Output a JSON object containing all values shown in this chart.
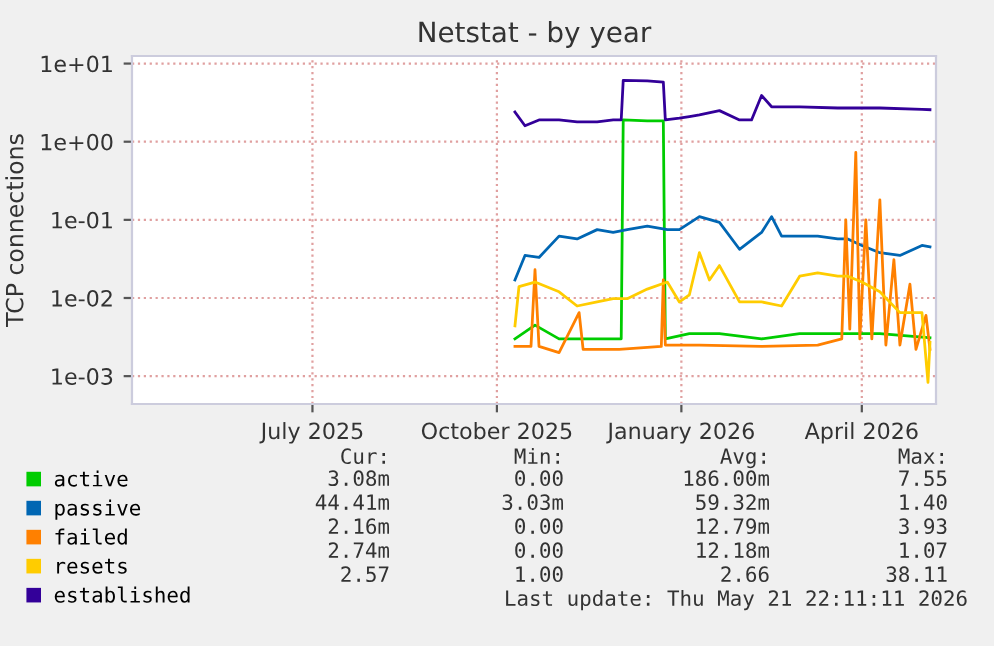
{
  "chart_data": {
    "type": "line",
    "title": "Netstat - by year",
    "ylabel": "TCP connections",
    "log": "y",
    "xlim": [
      "2025-04-02",
      "2026-05-08"
    ],
    "ylim": [
      0.00044,
      12.5
    ],
    "xticks": [
      {
        "value": "2025-07-01",
        "label": "July 2025"
      },
      {
        "value": "2025-10-01",
        "label": "October 2025"
      },
      {
        "value": "2026-01-01",
        "label": "January 2026"
      },
      {
        "value": "2026-04-01",
        "label": "April 2026"
      }
    ],
    "yticks": [
      {
        "value": 0.001,
        "label": "1e-03"
      },
      {
        "value": 0.01,
        "label": "1e-02"
      },
      {
        "value": 0.1,
        "label": "1e-01"
      },
      {
        "value": 1,
        "label": "1e+00"
      },
      {
        "value": 10,
        "label": "1e+01"
      }
    ],
    "grid": true,
    "legend": "bottom left",
    "line_style": "solid",
    "marker": "none",
    "series": [
      {
        "name": "active",
        "color": "#00cc00",
        "x": [
          "2025-10-10",
          "2025-10-20",
          "2025-11-01",
          "2025-11-15",
          "2025-12-02",
          "2025-12-03",
          "2025-12-15",
          "2025-12-23",
          "2025-12-24",
          "2026-01-05",
          "2026-01-20",
          "2026-02-10",
          "2026-03-01",
          "2026-03-20",
          "2026-04-10",
          "2026-05-05"
        ],
        "values": [
          0.003,
          0.0045,
          0.003,
          0.003,
          0.003,
          1.9,
          1.85,
          1.85,
          0.003,
          0.0035,
          0.0035,
          0.003,
          0.0035,
          0.0035,
          0.0035,
          0.0031
        ]
      },
      {
        "name": "passive",
        "color": "#0066b3",
        "x": [
          "2025-10-10",
          "2025-10-15",
          "2025-10-22",
          "2025-11-01",
          "2025-11-10",
          "2025-11-20",
          "2025-11-28",
          "2025-12-05",
          "2025-12-15",
          "2025-12-25",
          "2025-12-31",
          "2026-01-10",
          "2026-01-20",
          "2026-01-30",
          "2026-02-10",
          "2026-02-15",
          "2026-02-20",
          "2026-03-01",
          "2026-03-10",
          "2026-03-20",
          "2026-03-25",
          "2026-04-01",
          "2026-04-10",
          "2026-04-20",
          "2026-05-01",
          "2026-05-05"
        ],
        "values": [
          0.017,
          0.035,
          0.033,
          0.062,
          0.057,
          0.075,
          0.069,
          0.075,
          0.083,
          0.075,
          0.075,
          0.11,
          0.093,
          0.042,
          0.069,
          0.11,
          0.062,
          0.062,
          0.062,
          0.057,
          0.057,
          0.047,
          0.038,
          0.035,
          0.047,
          0.045
        ]
      },
      {
        "name": "failed",
        "color": "#ff8000",
        "x": [
          "2025-10-10",
          "2025-10-18",
          "2025-10-20",
          "2025-10-22",
          "2025-11-01",
          "2025-11-11",
          "2025-11-13",
          "2025-12-01",
          "2025-12-22",
          "2025-12-23",
          "2025-12-24",
          "2026-01-10",
          "2026-02-10",
          "2026-03-10",
          "2026-03-22",
          "2026-03-24",
          "2026-03-26",
          "2026-03-29",
          "2026-03-31",
          "2026-04-03",
          "2026-04-06",
          "2026-04-10",
          "2026-04-13",
          "2026-04-17",
          "2026-04-20",
          "2026-04-25",
          "2026-04-28",
          "2026-05-03",
          "2026-05-05"
        ],
        "values": [
          0.0024,
          0.0024,
          0.023,
          0.0024,
          0.002,
          0.0065,
          0.0022,
          0.0022,
          0.0024,
          0.017,
          0.0025,
          0.0025,
          0.0024,
          0.0025,
          0.003,
          0.1,
          0.004,
          0.73,
          0.003,
          0.1,
          0.003,
          0.18,
          0.0025,
          0.031,
          0.0025,
          0.015,
          0.0022,
          0.006,
          0.0022
        ]
      },
      {
        "name": "resets",
        "color": "#ffcc00",
        "x": [
          "2025-10-10",
          "2025-10-12",
          "2025-10-20",
          "2025-11-01",
          "2025-11-10",
          "2025-11-20",
          "2025-11-28",
          "2025-12-05",
          "2025-12-15",
          "2025-12-25",
          "2025-12-31",
          "2026-01-05",
          "2026-01-10",
          "2026-01-15",
          "2026-01-20",
          "2026-01-30",
          "2026-02-10",
          "2026-02-20",
          "2026-03-01",
          "2026-03-10",
          "2026-03-20",
          "2026-03-25",
          "2026-04-01",
          "2026-04-10",
          "2026-04-20",
          "2026-05-01",
          "2026-05-04",
          "2026-05-05"
        ],
        "values": [
          0.0044,
          0.014,
          0.016,
          0.012,
          0.0079,
          0.0089,
          0.0098,
          0.0098,
          0.013,
          0.016,
          0.0089,
          0.011,
          0.038,
          0.017,
          0.026,
          0.0089,
          0.0089,
          0.0079,
          0.019,
          0.021,
          0.019,
          0.019,
          0.016,
          0.012,
          0.0065,
          0.0065,
          0.00083,
          0.0027
        ]
      },
      {
        "name": "established",
        "color": "#330099",
        "x": [
          "2025-10-10",
          "2025-10-15",
          "2025-10-22",
          "2025-11-01",
          "2025-11-10",
          "2025-11-20",
          "2025-11-28",
          "2025-12-02",
          "2025-12-03",
          "2025-12-15",
          "2025-12-23",
          "2025-12-24",
          "2025-12-31",
          "2026-01-05",
          "2026-01-10",
          "2026-01-20",
          "2026-01-30",
          "2026-02-05",
          "2026-02-10",
          "2026-02-15",
          "2026-03-01",
          "2026-03-20",
          "2026-04-10",
          "2026-05-01",
          "2026-05-05"
        ],
        "values": [
          2.4,
          1.6,
          1.9,
          1.9,
          1.8,
          1.8,
          1.9,
          1.9,
          6.1,
          6.0,
          5.8,
          1.9,
          2.0,
          2.1,
          2.2,
          2.5,
          1.9,
          1.9,
          3.9,
          2.8,
          2.8,
          2.7,
          2.7,
          2.6,
          2.57
        ]
      }
    ],
    "annotations": [
      "Cur:",
      "Min:",
      "Avg:",
      "Max:",
      "3.08m",
      "0.00",
      "186.00m",
      "7.55",
      "44.41m",
      "3.03m",
      "59.32m",
      "1.40",
      "2.16m",
      "0.00",
      "12.79m",
      "3.93",
      "2.74m",
      "0.00",
      "12.18m",
      "1.07",
      "2.57",
      "1.00",
      "2.66",
      "38.11",
      "Last update: Thu May 21 22:11:11 2026"
    ]
  }
}
